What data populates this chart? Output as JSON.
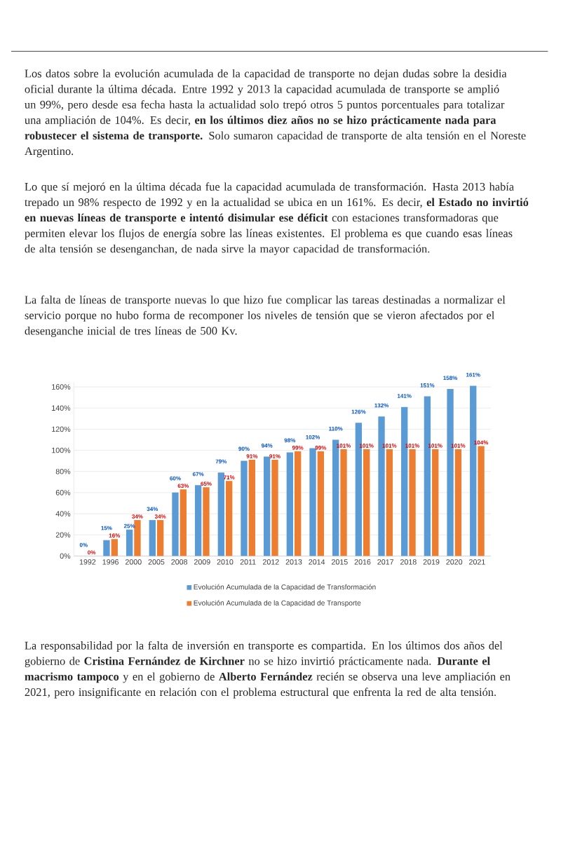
{
  "chart_data": {
    "type": "bar",
    "categories": [
      "1992",
      "1996",
      "2000",
      "2005",
      "2008",
      "2009",
      "2010",
      "2011",
      "2012",
      "2013",
      "2014",
      "2015",
      "2016",
      "2017",
      "2018",
      "2019",
      "2020",
      "2021"
    ],
    "series": [
      {
        "name": "Evolución Acumulada de la Capacidad de Transformación",
        "color": "#5b9bd5",
        "values": [
          0,
          15,
          25,
          34,
          60,
          67,
          79,
          90,
          94,
          98,
          102,
          110,
          126,
          132,
          141,
          151,
          158,
          161
        ],
        "value_labels": [
          "0%",
          "15%",
          "25%",
          "34%",
          "60%",
          "67%",
          "79%",
          "90%",
          "94%",
          "98%",
          "102%",
          "110%",
          "126%",
          "132%",
          "141%",
          "151%",
          "158%",
          "161%"
        ]
      },
      {
        "name": "Evolución Acumulada de la Capacidad de Transporte",
        "color": "#ed7d31",
        "values": [
          0,
          16,
          34,
          34,
          63,
          65,
          71,
          91,
          91,
          99,
          99,
          101,
          101,
          101,
          101,
          101,
          101,
          104
        ],
        "value_labels": [
          "0%",
          "16%",
          "34%",
          "34%",
          "63%",
          "65%",
          "71%",
          "91%",
          "91%",
          "99%",
          "99%",
          "101%",
          "101%",
          "101%",
          "101%",
          "101%",
          "101%",
          "104%"
        ]
      }
    ],
    "ylim": [
      0,
      164
    ],
    "yticks": [
      {
        "value": 0,
        "label": "0%"
      },
      {
        "value": 20,
        "label": "20%"
      },
      {
        "value": 40,
        "label": "40%"
      },
      {
        "value": 60,
        "label": "60%"
      },
      {
        "value": 80,
        "label": "80%"
      },
      {
        "value": 100,
        "label": "100%"
      },
      {
        "value": 120,
        "label": "120%"
      },
      {
        "value": 140,
        "label": "140%"
      },
      {
        "value": 160,
        "label": "160%"
      }
    ],
    "grid": "y",
    "legend": "bottom",
    "annotations": [
      "Los datos sobre la evolución acumulada de la capacidad de transporte no dejan dudas sobre la desidia oficial durante la última década. Entre 1992 y 2013 la capacidad acumulada de transporte se amplió un 99%, pero desde esa fecha hasta la actualidad solo trepó otros 5 puntos porcentuales para totalizar una ampliación de 104%. Es decir, **en los últimos diez años no se hizo prácticamente nada para robustecer el sistema de transporte.** Solo sumaron capacidad de transporte de alta tensión en el Noreste Argentino.",
      "Lo que sí mejoró en la última década fue la capacidad acumulada de transformación. Hasta 2013 había trepado un 98% respecto de 1992 y en la actualidad se ubica en un 161%. Es decir, **el Estado no invirtió en nuevas líneas de transporte e intentó disimular ese déficit** con estaciones transformadoras que permiten elevar los flujos de energía sobre las líneas existentes. El problema es que cuando esas líneas de alta tensión se desenganchan, de nada sirve la mayor capacidad de transformación.",
      "La falta de líneas de transporte nuevas lo que hizo fue complicar las tareas destinadas a normalizar el servicio porque no hubo forma de recomponer los niveles de tensión que se vieron afectados por el desenganche inicial de tres líneas de 500 Kv.",
      "La responsabilidad por la falta de inversión en transporte es compartida. En los últimos dos años del gobierno de **Cristina Fernández de Kirchner** no se hizo invirtió prácticamente nada. **Durante el macrismo tampoco** y en el gobierno de **Alberto Fernández** recién se observa una leve ampliación en 2021, pero insignificante en relación con el problema estructural que enfrenta la red de alta tensión."
    ]
  }
}
